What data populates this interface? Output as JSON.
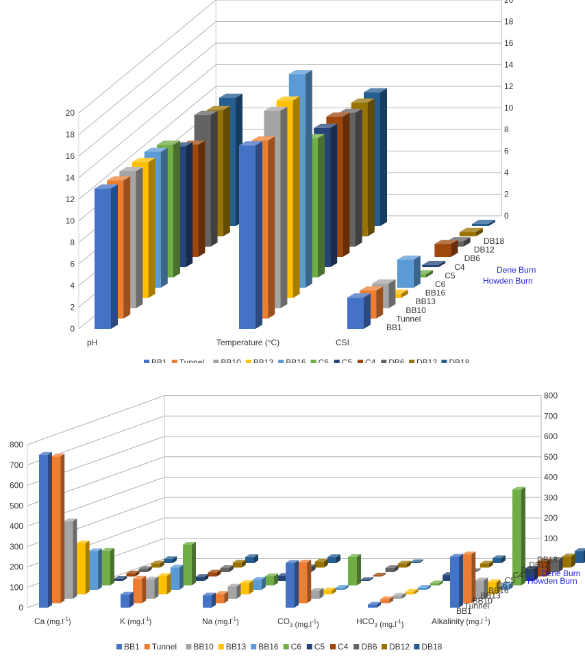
{
  "legend": [
    "BB1",
    "Tunnel",
    "BB10",
    "BB13",
    "BB16",
    "C6",
    "C5",
    "C4",
    "DB6",
    "DB12",
    "DB18"
  ],
  "colors": [
    "#4472c4",
    "#ed7d31",
    "#a5a5a5",
    "#ffc000",
    "#5b9bd5",
    "#70ad47",
    "#264478",
    "#9e480e",
    "#636363",
    "#997300",
    "#255e91"
  ],
  "group_labels": [
    "Dene Burn",
    "Howden Burn"
  ],
  "chart_data": [
    {
      "type": "bar",
      "title": "",
      "categories": [
        "pH",
        "Temperature (°C)",
        "CSI"
      ],
      "ylim": [
        0,
        20
      ],
      "yticks": [
        "0",
        "2",
        "4",
        "6",
        "8",
        "10",
        "12",
        "14",
        "16",
        "18",
        "20"
      ],
      "depth_ylim": [
        0,
        20
      ],
      "depth_yticks": [
        "0",
        "2",
        "4",
        "6",
        "8",
        "10",
        "12",
        "14",
        "16",
        "18",
        "20"
      ],
      "series": [
        {
          "name": "BB1",
          "values": [
            13.0,
            17.0,
            2.9
          ]
        },
        {
          "name": "Tunnel",
          "values": [
            12.8,
            16.5,
            2.6
          ]
        },
        {
          "name": "BB10",
          "values": [
            12.7,
            18.3,
            2.3
          ]
        },
        {
          "name": "BB13",
          "values": [
            12.6,
            18.3,
            0.4
          ]
        },
        {
          "name": "BB16",
          "values": [
            12.6,
            19.8,
            2.6
          ]
        },
        {
          "name": "C6",
          "values": [
            12.3,
            12.9,
            0.3
          ]
        },
        {
          "name": "C5",
          "values": [
            11.2,
            12.9,
            0.2
          ]
        },
        {
          "name": "C4",
          "values": [
            10.4,
            13.0,
            1.2
          ]
        },
        {
          "name": "DB6",
          "values": [
            12.2,
            12.4,
            0.5
          ]
        },
        {
          "name": "DB12",
          "values": [
            11.7,
            12.4,
            0.4
          ]
        },
        {
          "name": "DB18",
          "values": [
            11.9,
            12.4,
            0.2
          ]
        }
      ],
      "depth_labels": [
        "BB1",
        "Tunnel",
        "BB10",
        "BB13",
        "BB16",
        "C6",
        "C5",
        "C4",
        "DB6",
        "DB12",
        "DB18"
      ]
    },
    {
      "type": "bar",
      "title": "",
      "categories": [
        {
          "main": "Ca",
          "unit": "(mg.l",
          "sup": "-1",
          "end": ")"
        },
        {
          "main": "K",
          "unit": "(mg.l",
          "sup": "-1",
          "end": ")"
        },
        {
          "main": "Na",
          "unit": "(mg.l",
          "sup": "-1",
          "end": ")"
        },
        {
          "main": "CO",
          "sub": "3",
          "unit": "  (mg.l",
          "sup": "-1",
          "end": ")"
        },
        {
          "main": "HCO",
          "sub": "3",
          "unit": "  (mg.l",
          "sup": "-1",
          "end": ")"
        },
        {
          "main": "Alkalinity",
          "unit": "(mg.l",
          "sup": "-1",
          "end": ")"
        }
      ],
      "ylim": [
        0,
        800
      ],
      "yticks": [
        "0",
        "100",
        "200",
        "300",
        "400",
        "500",
        "600",
        "700",
        "800"
      ],
      "depth_ylim": [
        0,
        800
      ],
      "depth_yticks": [
        "100",
        "200",
        "300",
        "400",
        "500",
        "600",
        "700",
        "800"
      ],
      "series": [
        {
          "name": "BB1",
          "values": [
            750,
            65,
            60,
            220,
            15,
            250
          ]
        },
        {
          "name": "Tunnel",
          "values": [
            720,
            120,
            45,
            200,
            20,
            240
          ]
        },
        {
          "name": "BB10",
          "values": [
            380,
            95,
            60,
            40,
            15,
            90
          ]
        },
        {
          "name": "BB13",
          "values": [
            250,
            90,
            55,
            20,
            12,
            60
          ]
        },
        {
          "name": "BB16",
          "values": [
            190,
            110,
            50,
            10,
            10,
            25
          ]
        },
        {
          "name": "C6",
          "values": [
            170,
            200,
            45,
            140,
            10,
            470
          ]
        },
        {
          "name": "C5",
          "values": [
            10,
            20,
            25,
            5,
            30,
            60
          ]
        },
        {
          "name": "C4",
          "values": [
            15,
            20,
            25,
            5,
            40,
            75
          ]
        },
        {
          "name": "DB6",
          "values": [
            15,
            20,
            25,
            20,
            5,
            60
          ]
        },
        {
          "name": "DB12",
          "values": [
            20,
            25,
            30,
            20,
            20,
            55
          ]
        },
        {
          "name": "DB18",
          "values": [
            20,
            30,
            30,
            5,
            25,
            60
          ]
        }
      ],
      "depth_labels": [
        "BB1",
        "Tunnel",
        "BB10",
        "BB13",
        "BB16",
        "C6",
        "C5",
        "C4",
        "DB6",
        "DB12",
        "DB18"
      ]
    }
  ]
}
